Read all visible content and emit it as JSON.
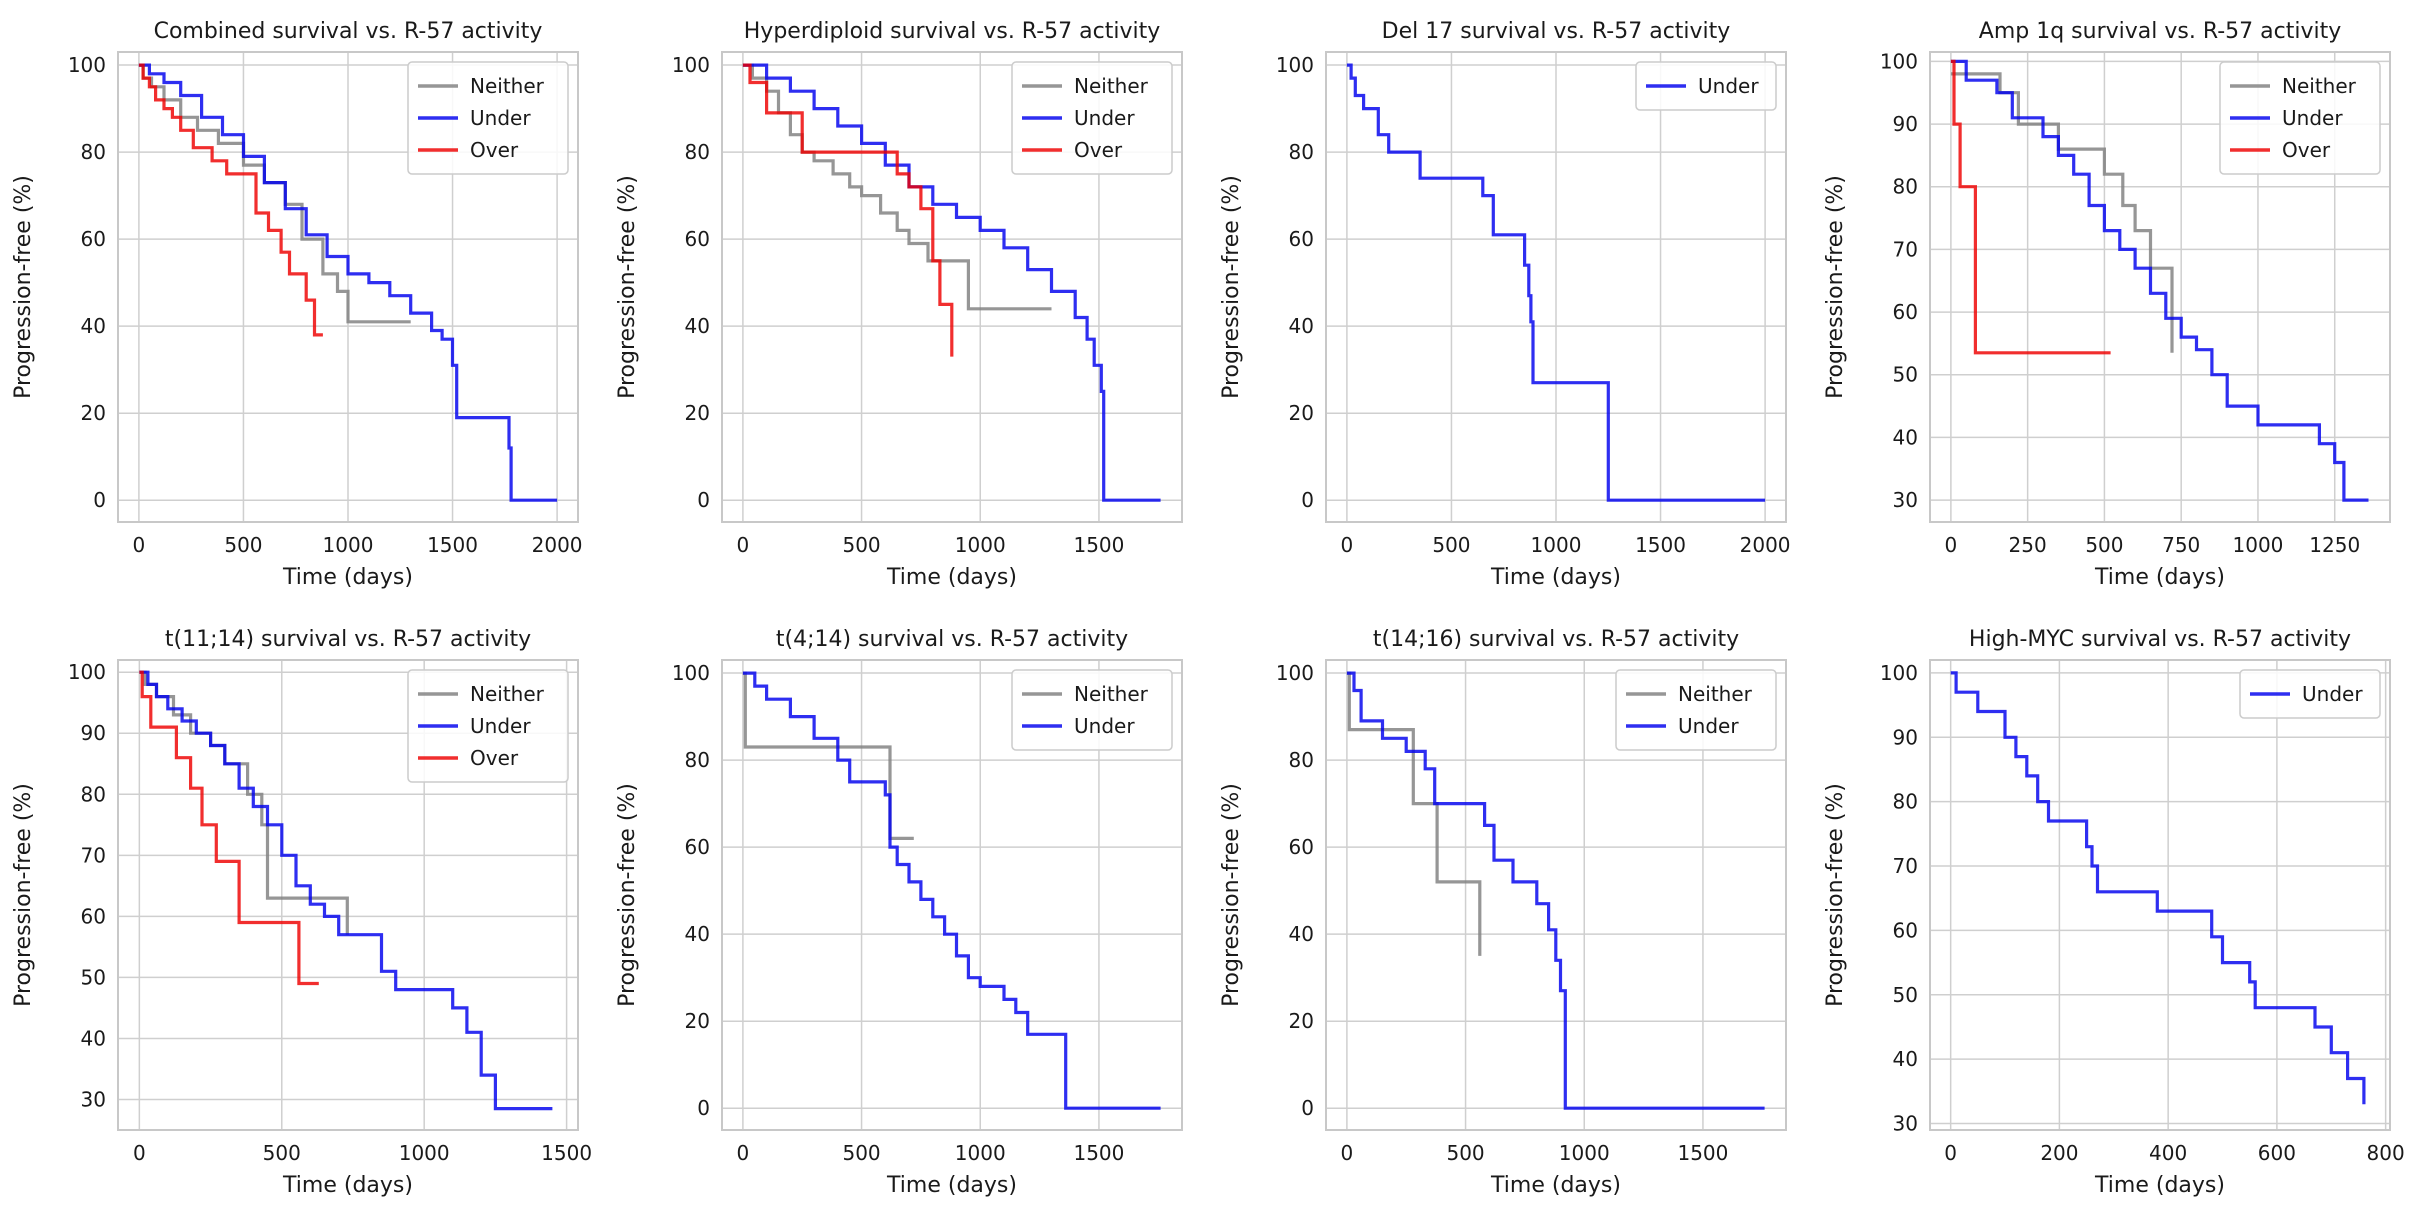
{
  "figure": {
    "series_colors": {
      "Neither": "#7f7f7f",
      "Under": "#0000ee",
      "Over": "#ee0000"
    }
  },
  "chart_data": [
    {
      "type": "line",
      "title": "Combined survival vs. R-57 activity",
      "xlabel": "Time (days)",
      "ylabel": "Progression-free (%)",
      "xlim": [
        -100,
        2100
      ],
      "ylim": [
        -5,
        103
      ],
      "xticks": [
        0,
        500,
        1000,
        1500,
        2000
      ],
      "yticks": [
        0,
        20,
        40,
        60,
        80,
        100
      ],
      "legend": "top-right",
      "series": [
        {
          "name": "Neither",
          "x": [
            0,
            20,
            60,
            120,
            200,
            280,
            380,
            500,
            600,
            700,
            780,
            880,
            950,
            1000,
            1300
          ],
          "y": [
            100,
            97,
            95,
            92,
            88,
            85,
            82,
            77,
            73,
            68,
            60,
            52,
            48,
            41,
            41
          ]
        },
        {
          "name": "Under",
          "x": [
            0,
            50,
            120,
            200,
            300,
            400,
            500,
            600,
            700,
            800,
            900,
            1000,
            1100,
            1200,
            1300,
            1400,
            1450,
            1500,
            1520,
            1760,
            1770,
            1780,
            2000
          ],
          "y": [
            100,
            98,
            96,
            93,
            88,
            84,
            79,
            73,
            67,
            61,
            56,
            52,
            50,
            47,
            43,
            39,
            37,
            31,
            19,
            19,
            12,
            0,
            0
          ]
        },
        {
          "name": "Over",
          "x": [
            0,
            20,
            50,
            80,
            120,
            160,
            200,
            260,
            350,
            420,
            500,
            560,
            620,
            680,
            720,
            800,
            840,
            880
          ],
          "y": [
            100,
            97,
            95,
            92,
            90,
            88,
            85,
            81,
            78,
            75,
            75,
            66,
            62,
            57,
            52,
            46,
            38,
            38
          ]
        }
      ]
    },
    {
      "type": "line",
      "title": "Hyperdiploid survival vs. R-57 activity",
      "xlabel": "Time (days)",
      "ylabel": "Progression-free (%)",
      "xlim": [
        -88,
        1850
      ],
      "ylim": [
        -5,
        103
      ],
      "xticks": [
        0,
        500,
        1000,
        1500
      ],
      "yticks": [
        0,
        20,
        40,
        60,
        80,
        100
      ],
      "legend": "top-right",
      "series": [
        {
          "name": "Neither",
          "x": [
            0,
            40,
            100,
            150,
            200,
            250,
            300,
            380,
            450,
            500,
            580,
            650,
            700,
            780,
            950,
            1300
          ],
          "y": [
            100,
            97,
            94,
            89,
            84,
            80,
            78,
            75,
            72,
            70,
            66,
            62,
            59,
            55,
            44,
            44
          ]
        },
        {
          "name": "Under",
          "x": [
            0,
            100,
            200,
            300,
            400,
            500,
            600,
            700,
            800,
            900,
            1000,
            1100,
            1200,
            1300,
            1400,
            1450,
            1480,
            1510,
            1520,
            1760
          ],
          "y": [
            100,
            97,
            94,
            90,
            86,
            82,
            77,
            72,
            68,
            65,
            62,
            58,
            53,
            48,
            42,
            37,
            31,
            25,
            0,
            0
          ]
        },
        {
          "name": "Over",
          "x": [
            0,
            30,
            100,
            250,
            600,
            650,
            700,
            750,
            800,
            830,
            880
          ],
          "y": [
            100,
            96,
            89,
            80,
            80,
            75,
            72,
            67,
            55,
            45,
            33
          ]
        }
      ]
    },
    {
      "type": "line",
      "title": "Del 17 survival vs. R-57 activity",
      "xlabel": "Time (days)",
      "ylabel": "Progression-free (%)",
      "xlim": [
        -100,
        2100
      ],
      "ylim": [
        -5,
        103
      ],
      "xticks": [
        0,
        500,
        1000,
        1500,
        2000
      ],
      "yticks": [
        0,
        20,
        40,
        60,
        80,
        100
      ],
      "legend": "top-right",
      "series": [
        {
          "name": "Under",
          "x": [
            0,
            20,
            40,
            80,
            150,
            200,
            350,
            650,
            700,
            850,
            870,
            880,
            890,
            900,
            1250,
            2000
          ],
          "y": [
            100,
            97,
            93,
            90,
            84,
            80,
            74,
            70,
            61,
            54,
            47,
            41,
            27,
            27,
            0,
            0
          ]
        }
      ]
    },
    {
      "type": "line",
      "title": "Amp 1q survival vs. R-57 activity",
      "xlabel": "Time (days)",
      "ylabel": "Progression-free (%)",
      "xlim": [
        -68,
        1430
      ],
      "ylim": [
        26.5,
        101.5
      ],
      "xticks": [
        0,
        250,
        500,
        750,
        1000,
        1250
      ],
      "yticks": [
        30,
        40,
        50,
        60,
        70,
        80,
        90,
        100
      ],
      "legend": "top-right",
      "series": [
        {
          "name": "Neither",
          "x": [
            0,
            100,
            160,
            220,
            350,
            500,
            560,
            600,
            650,
            720
          ],
          "y": [
            98,
            98,
            95,
            90,
            86,
            82,
            77,
            73,
            67,
            53.5
          ]
        },
        {
          "name": "Under",
          "x": [
            0,
            50,
            150,
            200,
            300,
            350,
            400,
            450,
            500,
            550,
            600,
            650,
            700,
            750,
            800,
            850,
            900,
            950,
            1000,
            1050,
            1100,
            1150,
            1200,
            1250,
            1280,
            1360
          ],
          "y": [
            100,
            97,
            95,
            91,
            88,
            85,
            82,
            77,
            73,
            70,
            67,
            63,
            59,
            56,
            54,
            50,
            45,
            45,
            42,
            42,
            42,
            42,
            39,
            36,
            30,
            30
          ]
        },
        {
          "name": "Over",
          "x": [
            0,
            10,
            30,
            80,
            520
          ],
          "y": [
            100,
            90,
            80,
            53.5,
            53.5
          ]
        }
      ]
    },
    {
      "type": "line",
      "title": "t(11;14) survival vs. R-57 activity",
      "xlabel": "Time (days)",
      "ylabel": "Progression-free (%)",
      "xlim": [
        -75,
        1540
      ],
      "ylim": [
        25,
        102
      ],
      "xticks": [
        0,
        500,
        1000,
        1500
      ],
      "yticks": [
        30,
        40,
        50,
        60,
        70,
        80,
        90,
        100
      ],
      "legend": "top-right",
      "series": [
        {
          "name": "Neither",
          "x": [
            0,
            20,
            60,
            120,
            180,
            250,
            300,
            380,
            430,
            450,
            700,
            730
          ],
          "y": [
            100,
            98,
            96,
            93,
            90,
            88,
            85,
            80,
            75,
            63,
            63,
            57
          ]
        },
        {
          "name": "Under",
          "x": [
            0,
            30,
            60,
            100,
            150,
            200,
            250,
            300,
            350,
            400,
            450,
            500,
            550,
            600,
            650,
            700,
            800,
            850,
            900,
            1050,
            1100,
            1150,
            1200,
            1250,
            1450
          ],
          "y": [
            100,
            98,
            96,
            94,
            92,
            90,
            88,
            85,
            81,
            78,
            75,
            70,
            65,
            62,
            60,
            57,
            57,
            51,
            48,
            48,
            45,
            41,
            34,
            28.5,
            28.5
          ]
        },
        {
          "name": "Over",
          "x": [
            0,
            10,
            40,
            130,
            180,
            220,
            270,
            350,
            550,
            560,
            630
          ],
          "y": [
            100,
            96,
            91,
            86,
            81,
            75,
            69,
            59,
            59,
            49,
            49
          ]
        }
      ]
    },
    {
      "type": "line",
      "title": "t(4;14) survival vs. R-57 activity",
      "xlabel": "Time (days)",
      "ylabel": "Progression-free (%)",
      "xlim": [
        -88,
        1850
      ],
      "ylim": [
        -5,
        103
      ],
      "xticks": [
        0,
        500,
        1000,
        1500
      ],
      "yticks": [
        0,
        20,
        40,
        60,
        80,
        100
      ],
      "legend": "top-right",
      "series": [
        {
          "name": "Neither",
          "x": [
            0,
            10,
            610,
            620,
            720
          ],
          "y": [
            100,
            83,
            83,
            62,
            62
          ]
        },
        {
          "name": "Under",
          "x": [
            0,
            50,
            100,
            200,
            300,
            400,
            450,
            600,
            620,
            650,
            700,
            750,
            800,
            850,
            900,
            950,
            1000,
            1100,
            1150,
            1200,
            1350,
            1360,
            1760
          ],
          "y": [
            100,
            97,
            94,
            90,
            85,
            80,
            75,
            72,
            60,
            56,
            52,
            48,
            44,
            40,
            35,
            30,
            28,
            25,
            22,
            17,
            17,
            0,
            0
          ]
        }
      ]
    },
    {
      "type": "line",
      "title": "t(14;16) survival vs. R-57 activity",
      "xlabel": "Time (days)",
      "ylabel": "Progression-free (%)",
      "xlim": [
        -88,
        1850
      ],
      "ylim": [
        -5,
        103
      ],
      "xticks": [
        0,
        500,
        1000,
        1500
      ],
      "yticks": [
        0,
        20,
        40,
        60,
        80,
        100
      ],
      "legend": "top-right",
      "series": [
        {
          "name": "Neither",
          "x": [
            0,
            10,
            250,
            280,
            380,
            550,
            560
          ],
          "y": [
            100,
            87,
            87,
            70,
            52,
            52,
            35
          ]
        },
        {
          "name": "Under",
          "x": [
            0,
            30,
            60,
            150,
            250,
            330,
            370,
            550,
            580,
            620,
            700,
            800,
            850,
            880,
            900,
            920,
            1760
          ],
          "y": [
            100,
            96,
            89,
            85,
            82,
            78,
            70,
            70,
            65,
            57,
            52,
            47,
            41,
            34,
            27,
            0,
            0
          ]
        }
      ]
    },
    {
      "type": "line",
      "title": "High-MYC survival vs. R-57 activity",
      "xlabel": "Time (days)",
      "ylabel": "Progression-free (%)",
      "xlim": [
        -38,
        808
      ],
      "ylim": [
        29,
        102
      ],
      "xticks": [
        0,
        200,
        400,
        600,
        800
      ],
      "yticks": [
        30,
        40,
        50,
        60,
        70,
        80,
        90,
        100
      ],
      "legend": "top-right",
      "series": [
        {
          "name": "Under",
          "x": [
            0,
            10,
            50,
            100,
            120,
            140,
            160,
            180,
            250,
            260,
            270,
            370,
            380,
            400,
            480,
            500,
            550,
            560,
            670,
            700,
            730,
            760
          ],
          "y": [
            100,
            97,
            94,
            90,
            87,
            84,
            80,
            77,
            73,
            70,
            66,
            66,
            63,
            63,
            59,
            55,
            52,
            48,
            45,
            41,
            37,
            33
          ]
        }
      ]
    }
  ]
}
